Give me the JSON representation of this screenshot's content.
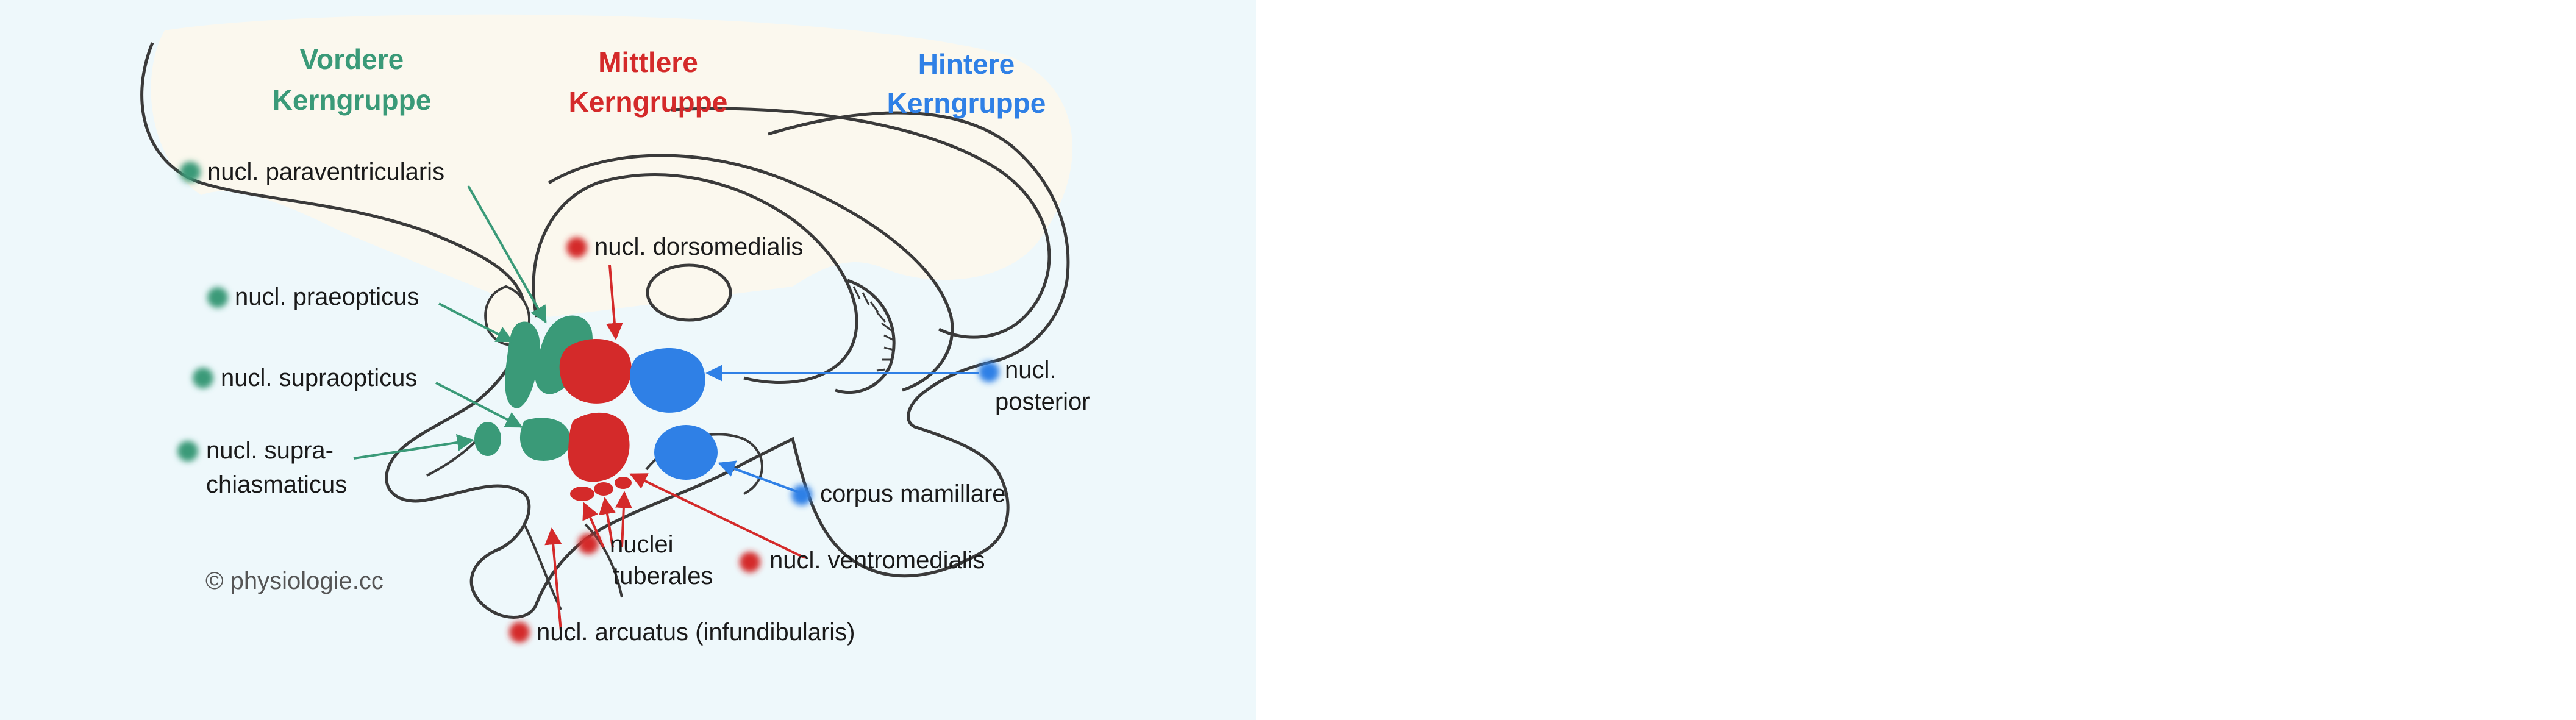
{
  "colors": {
    "panel": "#eef8fb",
    "canvas": "#ffffff",
    "tissue": "#fbf8ee",
    "outline": "#3a3a3a",
    "green": "#3a9a78",
    "red": "#d42a2a",
    "blue": "#2f80e6"
  },
  "groups": {
    "anterior": {
      "line1": "Vordere",
      "line2": "Kerngruppe"
    },
    "middle": {
      "line1": "Mittlere",
      "line2": "Kerngruppe"
    },
    "posterior": {
      "line1": "Hintere",
      "line2": "Kerngruppe"
    }
  },
  "labels": {
    "paraventricularis": "nucl. paraventricularis",
    "praeopticus": "nucl. praeopticus",
    "supraopticus": "nucl. supraopticus",
    "suprachiasmaticus_1": "nucl. supra-",
    "suprachiasmaticus_2": "chiasmaticus",
    "dorsomedialis": "nucl. dorsomedialis",
    "posterior_1": "nucl.",
    "posterior_2": "posterior",
    "mamillare": "corpus mamillare",
    "tuberales_1": "nuclei",
    "tuberales_2": "tuberales",
    "ventromedialis": "nucl. ventromedialis",
    "arcuatus": "nucl. arcuatus (infundibularis)"
  },
  "copyright": "© physiologie.cc"
}
